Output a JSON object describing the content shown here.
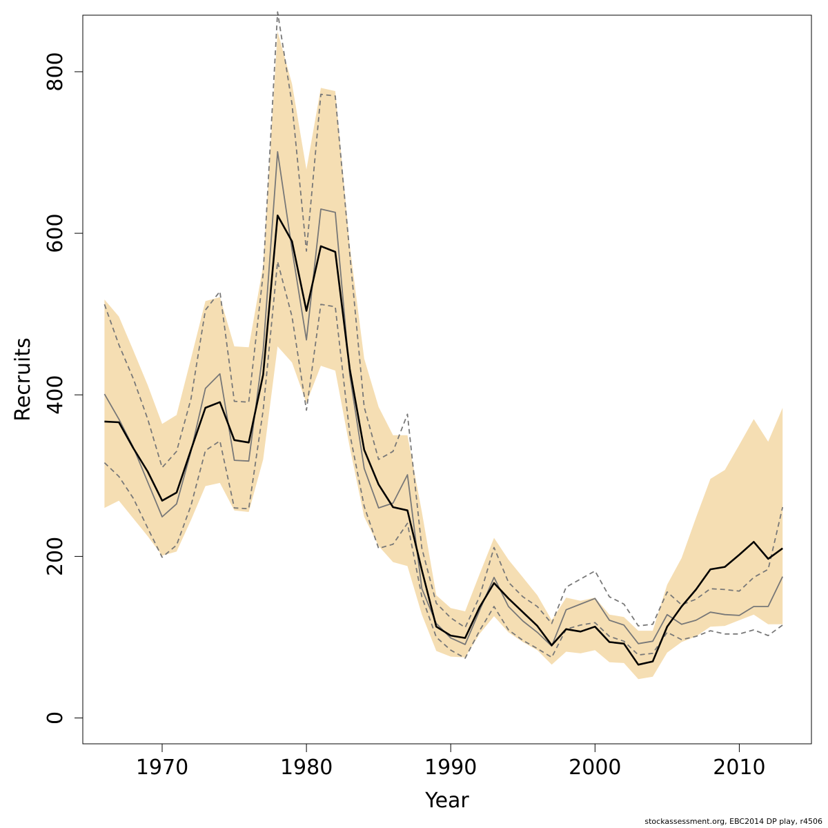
{
  "chart_data": {
    "type": "line",
    "xlabel": "Year",
    "ylabel": "Recruits",
    "xlim": [
      1964.5,
      2015
    ],
    "ylim": [
      -32,
      870
    ],
    "x_ticks": [
      1970,
      1980,
      1990,
      2000,
      2010
    ],
    "y_ticks": [
      0,
      200,
      400,
      600,
      800
    ],
    "grid": false,
    "x": [
      1966,
      1967,
      1968,
      1969,
      1970,
      1971,
      1972,
      1973,
      1974,
      1975,
      1976,
      1977,
      1978,
      1979,
      1980,
      1981,
      1982,
      1983,
      1984,
      1985,
      1986,
      1987,
      1988,
      1989,
      1990,
      1991,
      1992,
      1993,
      1994,
      1995,
      1996,
      1997,
      1998,
      1999,
      2000,
      2001,
      2002,
      2003,
      2004,
      2005,
      2006,
      2007,
      2008,
      2009,
      2010,
      2011,
      2012,
      2013
    ],
    "series": [
      {
        "role": "band_upper",
        "color": "#f5deb3",
        "values": [
          518,
          497,
          455,
          412,
          364,
          375,
          445,
          516,
          521,
          460,
          459,
          560,
          850,
          785,
          679,
          780,
          776,
          585,
          445,
          385,
          350,
          350,
          255,
          152,
          136,
          132,
          178,
          223,
          196,
          174,
          152,
          121,
          149,
          145,
          149,
          128,
          125,
          108,
          108,
          165,
          198,
          248,
          296,
          307,
          338,
          370,
          342,
          384
        ]
      },
      {
        "role": "band_lower",
        "color": "#f5deb3",
        "values": [
          260,
          269,
          247,
          225,
          201,
          206,
          245,
          287,
          291,
          257,
          255,
          320,
          460,
          440,
          390,
          436,
          430,
          335,
          249,
          213,
          193,
          188,
          128,
          83,
          76,
          75,
          104,
          126,
          106,
          94,
          84,
          66,
          82,
          80,
          84,
          69,
          68,
          48,
          51,
          81,
          94,
          101,
          113,
          114,
          121,
          128,
          116,
          116
        ]
      },
      {
        "role": "upper_dashed",
        "color": "#777777",
        "values": [
          512,
          462,
          420,
          370,
          310,
          330,
          395,
          505,
          528,
          392,
          391,
          550,
          874,
          760,
          578,
          772,
          770,
          575,
          385,
          320,
          330,
          376,
          210,
          142,
          124,
          112,
          150,
          211,
          168,
          150,
          138,
          117,
          162,
          172,
          182,
          150,
          141,
          114,
          116,
          156,
          140,
          147,
          160,
          159,
          157,
          174,
          184,
          261
        ]
      },
      {
        "role": "lower_dashed",
        "color": "#777777",
        "values": [
          316,
          299,
          272,
          235,
          199,
          214,
          263,
          331,
          343,
          260,
          259,
          381,
          565,
          497,
          381,
          512,
          509,
          352,
          262,
          210,
          215,
          241,
          150,
          100,
          84,
          74,
          108,
          138,
          109,
          96,
          86,
          75,
          110,
          115,
          118,
          101,
          95,
          78,
          80,
          106,
          97,
          101,
          108,
          104,
          104,
          109,
          102,
          115
        ]
      },
      {
        "role": "gray",
        "color": "#777777",
        "values": [
          401,
          370,
          335,
          292,
          249,
          265,
          330,
          408,
          426,
          319,
          318,
          455,
          701,
          580,
          468,
          630,
          626,
          425,
          309,
          260,
          266,
          301,
          160,
          117,
          99,
          91,
          133,
          174,
          138,
          120,
          106,
          89,
          134,
          141,
          148,
          121,
          115,
          92,
          95,
          128,
          116,
          121,
          131,
          128,
          127,
          138,
          138,
          175
        ]
      },
      {
        "role": "median",
        "color": "#000000",
        "values": [
          367,
          366,
          334,
          305,
          269,
          279,
          332,
          384,
          391,
          344,
          341,
          425,
          622,
          590,
          504,
          584,
          577,
          432,
          332,
          289,
          261,
          257,
          183,
          113,
          102,
          99,
          137,
          167,
          148,
          131,
          114,
          90,
          110,
          107,
          113,
          94,
          92,
          66,
          70,
          113,
          138,
          159,
          184,
          187,
          202,
          218,
          197,
          210
        ]
      }
    ],
    "footer": "stockassessment.org, EBC2014 DP play, r4506"
  }
}
